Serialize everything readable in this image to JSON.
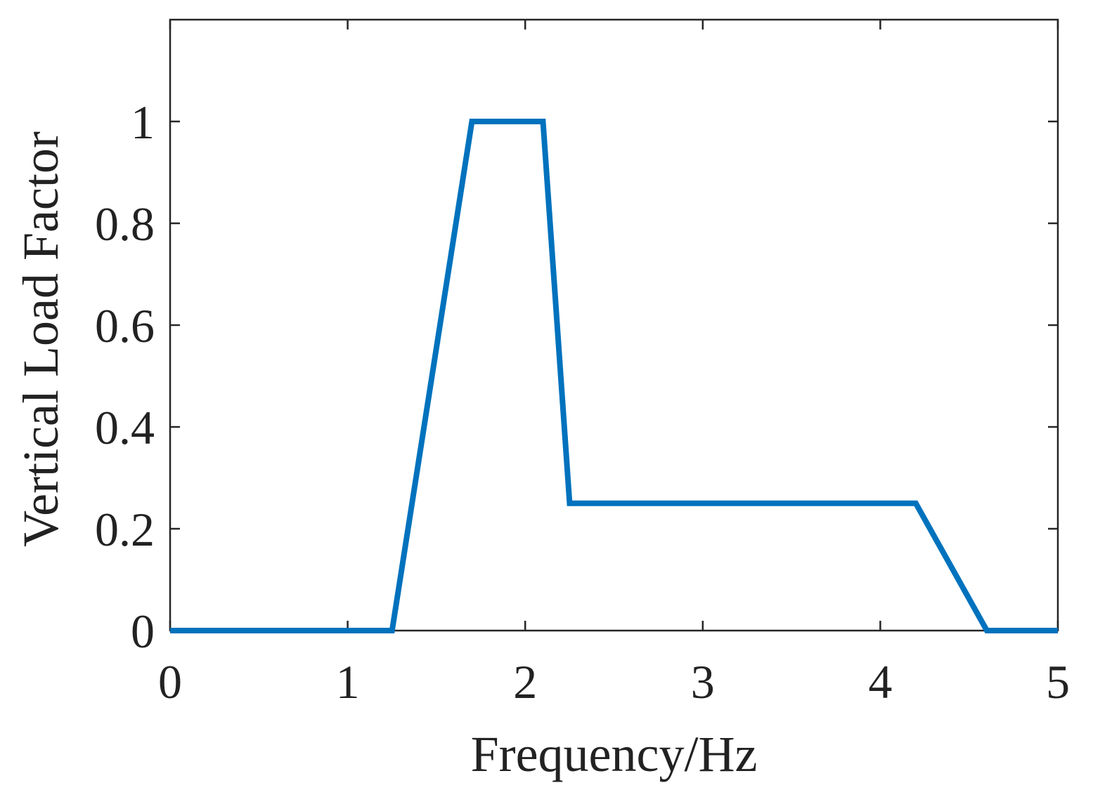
{
  "chart_data": {
    "type": "line",
    "title": "",
    "xlabel": "Frequency/Hz",
    "ylabel": "Vertical Load Factor",
    "xlim": [
      0,
      5
    ],
    "ylim": [
      0,
      1.2
    ],
    "xticks": [
      0,
      1,
      2,
      3,
      4,
      5
    ],
    "yticks": [
      0,
      0.2,
      0.4,
      0.6,
      0.8,
      1
    ],
    "xtick_labels": [
      "0",
      "1",
      "2",
      "3",
      "4",
      "5"
    ],
    "ytick_labels": [
      "0",
      "0.2",
      "0.4",
      "0.6",
      "0.8",
      "1"
    ],
    "grid": false,
    "box": true,
    "legend": "none",
    "series": [
      {
        "color": "#0072BD",
        "x": [
          0,
          1.25,
          1.7,
          2.1,
          2.25,
          4.2,
          4.6,
          5
        ],
        "y": [
          0,
          0,
          1,
          1,
          0.25,
          0.25,
          0,
          0
        ]
      }
    ]
  }
}
